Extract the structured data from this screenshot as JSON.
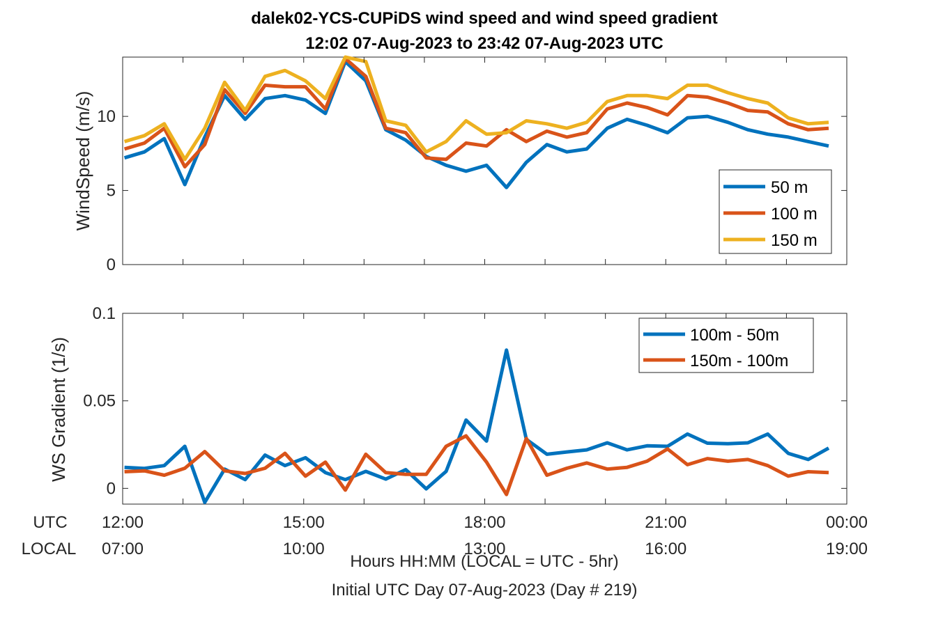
{
  "title_line1": "dalek02-YCS-CUPiDS  wind speed and wind speed gradient",
  "title_line2": "12:02 07-Aug-2023 to 23:42 07-Aug-2023  UTC",
  "row_label_utc": "UTC",
  "row_label_local": "LOCAL",
  "xlabel_line1": "Hours HH:MM  (LOCAL = UTC - 5hr)",
  "xlabel_line2": "Initial UTC Day 07-Aug-2023 (Day # 219)",
  "colors": {
    "blue": "#0072BD",
    "orange": "#D95319",
    "yellow": "#EDB120"
  },
  "chart_data": [
    {
      "type": "line",
      "ylabel": "WindSpeed (m/s)",
      "xlim": [
        12.0,
        24.0
      ],
      "ylim": [
        0,
        14
      ],
      "yticks": [
        0,
        5,
        10
      ],
      "xticks": [
        12,
        15,
        18,
        21,
        24
      ],
      "xtick_labels_utc": [
        "12:00",
        "15:00",
        "18:00",
        "21:00",
        "00:00"
      ],
      "xtick_labels_local": [
        "07:00",
        "10:00",
        "13:00",
        "16:00",
        "19:00"
      ],
      "legend_position": "right",
      "x": [
        12.03,
        12.36,
        12.69,
        13.03,
        13.36,
        13.69,
        14.03,
        14.36,
        14.69,
        15.03,
        15.36,
        15.69,
        16.03,
        16.36,
        16.69,
        17.03,
        17.36,
        17.69,
        18.03,
        18.36,
        18.69,
        19.03,
        19.36,
        19.69,
        20.03,
        20.36,
        20.69,
        21.03,
        21.36,
        21.69,
        22.03,
        22.36,
        22.69,
        23.03,
        23.36,
        23.7
      ],
      "series": [
        {
          "name": "50 m",
          "color": "#0072BD",
          "values": [
            7.2,
            7.6,
            8.5,
            5.4,
            8.6,
            11.4,
            9.8,
            11.2,
            11.4,
            11.1,
            10.2,
            13.7,
            12.4,
            9.1,
            8.4,
            7.3,
            6.7,
            6.3,
            6.7,
            5.2,
            6.9,
            8.1,
            7.6,
            7.8,
            9.2,
            9.8,
            9.4,
            8.9,
            9.9,
            10.0,
            9.6,
            9.1,
            8.8,
            8.6,
            8.3,
            8.0
          ]
        },
        {
          "name": "100 m",
          "color": "#D95319",
          "values": [
            7.8,
            8.2,
            9.2,
            6.6,
            8.1,
            11.8,
            10.2,
            12.1,
            12.0,
            12.0,
            10.5,
            13.9,
            12.7,
            9.2,
            8.9,
            7.2,
            7.1,
            8.2,
            8.0,
            9.1,
            8.3,
            9.0,
            8.6,
            8.9,
            10.5,
            10.9,
            10.6,
            10.1,
            11.4,
            11.3,
            10.9,
            10.4,
            10.3,
            9.5,
            9.1,
            9.2
          ]
        },
        {
          "name": "150 m",
          "color": "#EDB120",
          "values": [
            8.3,
            8.7,
            9.5,
            7.1,
            9.2,
            12.3,
            10.4,
            12.7,
            13.1,
            12.4,
            11.2,
            14.0,
            13.7,
            9.7,
            9.4,
            7.6,
            8.3,
            9.7,
            8.8,
            8.9,
            9.7,
            9.5,
            9.2,
            9.6,
            11.0,
            11.4,
            11.4,
            11.2,
            12.1,
            12.1,
            11.6,
            11.2,
            10.9,
            9.9,
            9.5,
            9.6
          ]
        }
      ]
    },
    {
      "type": "line",
      "ylabel": "WS Gradient (1/s)",
      "xlim": [
        12.0,
        24.0
      ],
      "ylim": [
        -0.009,
        0.1
      ],
      "yticks": [
        0,
        0.05,
        0.1
      ],
      "ytick_labels": [
        "0",
        "0.05",
        "0.1"
      ],
      "xticks": [
        12,
        15,
        18,
        21,
        24
      ],
      "legend_position": "top-right",
      "x": [
        12.03,
        12.36,
        12.69,
        13.03,
        13.36,
        13.69,
        14.03,
        14.36,
        14.69,
        15.03,
        15.36,
        15.69,
        16.03,
        16.36,
        16.69,
        17.03,
        17.36,
        17.69,
        18.03,
        18.36,
        18.69,
        19.03,
        19.36,
        19.69,
        20.03,
        20.36,
        20.69,
        21.03,
        21.36,
        21.69,
        22.03,
        22.36,
        22.69,
        23.03,
        23.36,
        23.7
      ],
      "series": [
        {
          "name": "100m - 50m",
          "color": "#0072BD",
          "values": [
            0.012,
            0.0114,
            0.013,
            0.024,
            -0.008,
            0.011,
            0.005,
            0.019,
            0.013,
            0.0175,
            0.009,
            0.005,
            0.0097,
            0.0053,
            0.0107,
            -0.0003,
            0.0097,
            0.039,
            0.027,
            0.079,
            0.028,
            0.0195,
            0.0208,
            0.022,
            0.026,
            0.022,
            0.0243,
            0.024,
            0.031,
            0.0258,
            0.0255,
            0.026,
            0.031,
            0.02,
            0.0165,
            0.023
          ]
        },
        {
          "name": "150m - 100m",
          "color": "#D95319",
          "values": [
            0.0095,
            0.01,
            0.0075,
            0.0115,
            0.021,
            0.01,
            0.0085,
            0.0115,
            0.02,
            0.007,
            0.015,
            -0.001,
            0.0195,
            0.009,
            0.008,
            0.008,
            0.024,
            0.03,
            0.015,
            -0.0035,
            0.0285,
            0.0075,
            0.0115,
            0.0145,
            0.011,
            0.012,
            0.0155,
            0.0225,
            0.0135,
            0.017,
            0.0155,
            0.0165,
            0.013,
            0.007,
            0.0095,
            0.009
          ]
        }
      ]
    }
  ]
}
